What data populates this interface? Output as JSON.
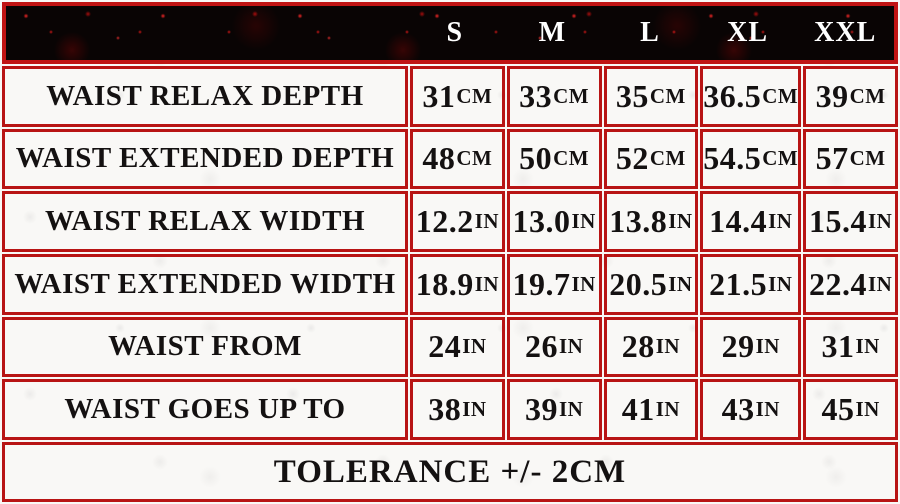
{
  "colors": {
    "border_red": "#b81414",
    "header_bg": "#090404",
    "header_text": "#ffffff",
    "cell_bg": "#f9f8f6",
    "cell_text": "#141111"
  },
  "table": {
    "sizes": [
      "S",
      "M",
      "L",
      "XL",
      "XXL"
    ],
    "rows": [
      {
        "label": "WAIST RELAX DEPTH",
        "values": [
          {
            "num": "31",
            "unit": "CM"
          },
          {
            "num": "33",
            "unit": "CM"
          },
          {
            "num": "35",
            "unit": "CM"
          },
          {
            "num": "36.5",
            "unit": "CM"
          },
          {
            "num": "39",
            "unit": "CM"
          }
        ]
      },
      {
        "label": "WAIST EXTENDED DEPTH",
        "values": [
          {
            "num": "48",
            "unit": "CM"
          },
          {
            "num": "50",
            "unit": "CM"
          },
          {
            "num": "52",
            "unit": "CM"
          },
          {
            "num": "54.5",
            "unit": "CM"
          },
          {
            "num": "57",
            "unit": "CM"
          }
        ]
      },
      {
        "label": "WAIST RELAX WIDTH",
        "values": [
          {
            "num": "12.2",
            "unit": "IN"
          },
          {
            "num": "13.0",
            "unit": "IN"
          },
          {
            "num": "13.8",
            "unit": "IN"
          },
          {
            "num": "14.4",
            "unit": "IN"
          },
          {
            "num": "15.4",
            "unit": "IN"
          }
        ]
      },
      {
        "label": "WAIST EXTENDED WIDTH",
        "values": [
          {
            "num": "18.9",
            "unit": "IN"
          },
          {
            "num": "19.7",
            "unit": "IN"
          },
          {
            "num": "20.5",
            "unit": "IN"
          },
          {
            "num": "21.5",
            "unit": "IN"
          },
          {
            "num": "22.4",
            "unit": "IN"
          }
        ]
      },
      {
        "label": "WAIST FROM",
        "values": [
          {
            "num": "24",
            "unit": "IN"
          },
          {
            "num": "26",
            "unit": "IN"
          },
          {
            "num": "28",
            "unit": "IN"
          },
          {
            "num": "29",
            "unit": "IN"
          },
          {
            "num": "31",
            "unit": "IN"
          }
        ]
      },
      {
        "label": "WAIST GOES UP TO",
        "values": [
          {
            "num": "38",
            "unit": "IN"
          },
          {
            "num": "39",
            "unit": "IN"
          },
          {
            "num": "41",
            "unit": "IN"
          },
          {
            "num": "43",
            "unit": "IN"
          },
          {
            "num": "45",
            "unit": "IN"
          }
        ]
      }
    ],
    "footer": "TOLERANCE +/- 2CM"
  }
}
